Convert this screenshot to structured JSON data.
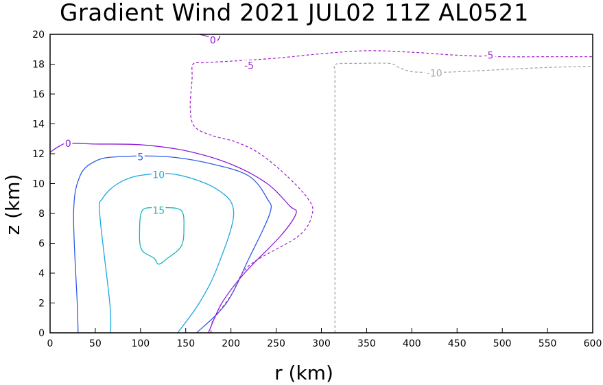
{
  "chart_data": {
    "type": "contour",
    "title": "Gradient Wind 2021 JUL02 11Z  AL0521",
    "xlabel": "r (km)",
    "ylabel": "z (km)",
    "xlim": [
      0,
      600
    ],
    "ylim": [
      0,
      20
    ],
    "xticks": [
      "0",
      "50",
      "100",
      "150",
      "200",
      "250",
      "300",
      "350",
      "400",
      "450",
      "500",
      "550",
      "600"
    ],
    "yticks": [
      "0",
      "2",
      "4",
      "6",
      "8",
      "10",
      "12",
      "14",
      "16",
      "18",
      "20"
    ],
    "grid": false,
    "contours": [
      {
        "level": 15,
        "label": "15",
        "color": "#1ab5b5",
        "dashed": false,
        "closed": true,
        "label_at": [
          120,
          8.2
        ],
        "points": [
          [
            125,
            8.4
          ],
          [
            145,
            8.2
          ],
          [
            148,
            7.0
          ],
          [
            145,
            5.8
          ],
          [
            130,
            5.0
          ],
          [
            120,
            4.6
          ],
          [
            115,
            5.0
          ],
          [
            101,
            5.6
          ],
          [
            99,
            7.0
          ],
          [
            102,
            8.2
          ],
          [
            115,
            8.4
          ]
        ]
      },
      {
        "level": 10,
        "label": "10",
        "color": "#1aa8e0",
        "dashed": false,
        "closed": false,
        "label_at": [
          120,
          10.6
        ],
        "points": [
          [
            67,
            0
          ],
          [
            66,
            2
          ],
          [
            55,
            7.9
          ],
          [
            58,
            9.0
          ],
          [
            75,
            10.0
          ],
          [
            100,
            10.55
          ],
          [
            140,
            10.6
          ],
          [
            185,
            9.6
          ],
          [
            203,
            8.0
          ],
          [
            185,
            4.4
          ],
          [
            165,
            2.0
          ],
          [
            141,
            0
          ]
        ]
      },
      {
        "level": 5,
        "label": "5",
        "color": "#2e5ae6",
        "dashed": false,
        "closed": false,
        "label_at": [
          100,
          11.8
        ],
        "points": [
          [
            31,
            0
          ],
          [
            30,
            2
          ],
          [
            26,
            8.0
          ],
          [
            33,
            10.5
          ],
          [
            50,
            11.5
          ],
          [
            75,
            11.8
          ],
          [
            130,
            11.8
          ],
          [
            180,
            11.3
          ],
          [
            220,
            10.5
          ],
          [
            240,
            9.0
          ],
          [
            243,
            8.0
          ],
          [
            220,
            5.0
          ],
          [
            195,
            2.0
          ],
          [
            162,
            0
          ]
        ]
      },
      {
        "level": 0,
        "label": "0",
        "color": "#8e1ad6",
        "dashed": false,
        "closed": false,
        "label_at": [
          20,
          12.7
        ],
        "points": [
          [
            0,
            12.1
          ],
          [
            10,
            12.5
          ],
          [
            20,
            12.7
          ],
          [
            50,
            12.65
          ],
          [
            100,
            12.6
          ],
          [
            150,
            12.2
          ],
          [
            200,
            11.3
          ],
          [
            240,
            10.0
          ],
          [
            265,
            8.5
          ],
          [
            272,
            8.0
          ],
          [
            255,
            6.5
          ],
          [
            215,
            4.0
          ],
          [
            190,
            2.0
          ],
          [
            175,
            0
          ]
        ]
      },
      {
        "level": -5,
        "label": "-5",
        "color": "#a52ad0",
        "dashed": true,
        "closed": false,
        "label_at": [
          220,
          17.9
        ],
        "points": [
          [
            178,
            0
          ],
          [
            180,
            0.8
          ],
          [
            200,
            2.5
          ],
          [
            220,
            4.5
          ],
          [
            275,
            6.5
          ],
          [
            290,
            8.0
          ],
          [
            285,
            9.0
          ],
          [
            262,
            10.5
          ],
          [
            232,
            12.0
          ],
          [
            205,
            12.8
          ],
          [
            180,
            13.2
          ],
          [
            160,
            13.8
          ],
          [
            155,
            15.0
          ],
          [
            157,
            17.0
          ],
          [
            158,
            18.0
          ],
          [
            170,
            18.1
          ],
          [
            200,
            18.2
          ],
          [
            250,
            18.4
          ],
          [
            300,
            18.7
          ],
          [
            350,
            18.9
          ],
          [
            400,
            18.8
          ],
          [
            450,
            18.6
          ],
          [
            500,
            18.5
          ],
          [
            550,
            18.5
          ],
          [
            600,
            18.5
          ]
        ]
      },
      {
        "level": -10,
        "label": "-10",
        "color": "#a5a5a5",
        "dashed": true,
        "closed": false,
        "label_at": [
          425,
          17.4
        ],
        "points": [
          [
            315,
            0
          ],
          [
            315,
            4
          ],
          [
            315,
            10
          ],
          [
            315,
            16
          ],
          [
            315,
            17.5
          ],
          [
            316,
            18.0
          ],
          [
            340,
            18.05
          ],
          [
            375,
            18.05
          ],
          [
            385,
            17.8
          ],
          [
            400,
            17.5
          ],
          [
            430,
            17.45
          ],
          [
            470,
            17.55
          ],
          [
            520,
            17.7
          ],
          [
            560,
            17.8
          ],
          [
            600,
            17.85
          ]
        ]
      },
      {
        "level": 0,
        "label": "0",
        "color": "#8e1ad6",
        "dashed": false,
        "closed": false,
        "label_at": [
          180,
          19.6
        ],
        "points": [
          [
            165,
            20
          ],
          [
            178,
            19.8
          ],
          [
            185,
            19.6
          ],
          [
            188,
            19.9
          ]
        ]
      },
      {
        "level": -5,
        "label": "-5",
        "color": "#a52ad0",
        "dashed": true,
        "closed": false,
        "label_at": [
          485,
          18.6
        ],
        "points": []
      }
    ]
  }
}
